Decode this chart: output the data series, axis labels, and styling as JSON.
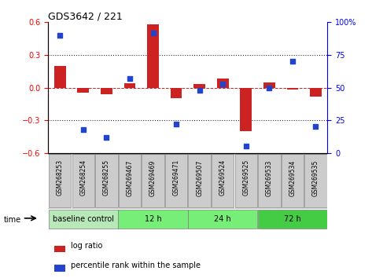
{
  "title": "GDS3642 / 221",
  "samples": [
    "GSM268253",
    "GSM268254",
    "GSM268255",
    "GSM269467",
    "GSM269469",
    "GSM269471",
    "GSM269507",
    "GSM269524",
    "GSM269525",
    "GSM269533",
    "GSM269534",
    "GSM269535"
  ],
  "log_ratio": [
    0.2,
    -0.05,
    -0.06,
    0.04,
    0.58,
    -0.1,
    0.03,
    0.08,
    -0.4,
    0.05,
    -0.02,
    -0.08
  ],
  "percentile_rank": [
    90,
    18,
    12,
    57,
    92,
    22,
    48,
    53,
    5,
    50,
    70,
    20
  ],
  "bar_color": "#cc2222",
  "scatter_color": "#2244cc",
  "left_ylim": [
    -0.6,
    0.6
  ],
  "right_ylim": [
    0,
    100
  ],
  "left_yticks": [
    -0.6,
    -0.3,
    0.0,
    0.3,
    0.6
  ],
  "right_yticks": [
    0,
    25,
    50,
    75,
    100
  ],
  "right_yticklabels": [
    "0",
    "25",
    "50",
    "75",
    "100%"
  ],
  "hline_color": "#cc2222",
  "dotted_line_color": "#333333",
  "dotted_lines": [
    -0.3,
    0.3
  ],
  "groups": [
    {
      "label": "baseline control",
      "start": 0,
      "end": 3,
      "color": "#b8e8b8"
    },
    {
      "label": "12 h",
      "start": 3,
      "end": 6,
      "color": "#77ee77"
    },
    {
      "label": "24 h",
      "start": 6,
      "end": 9,
      "color": "#77ee77"
    },
    {
      "label": "72 h",
      "start": 9,
      "end": 12,
      "color": "#44cc44"
    }
  ],
  "sample_cell_color": "#cccccc",
  "sample_cell_border": "#888888",
  "time_label": "time",
  "legend_log_ratio": "log ratio",
  "legend_percentile": "percentile rank within the sample",
  "bg_color": "#ffffff"
}
